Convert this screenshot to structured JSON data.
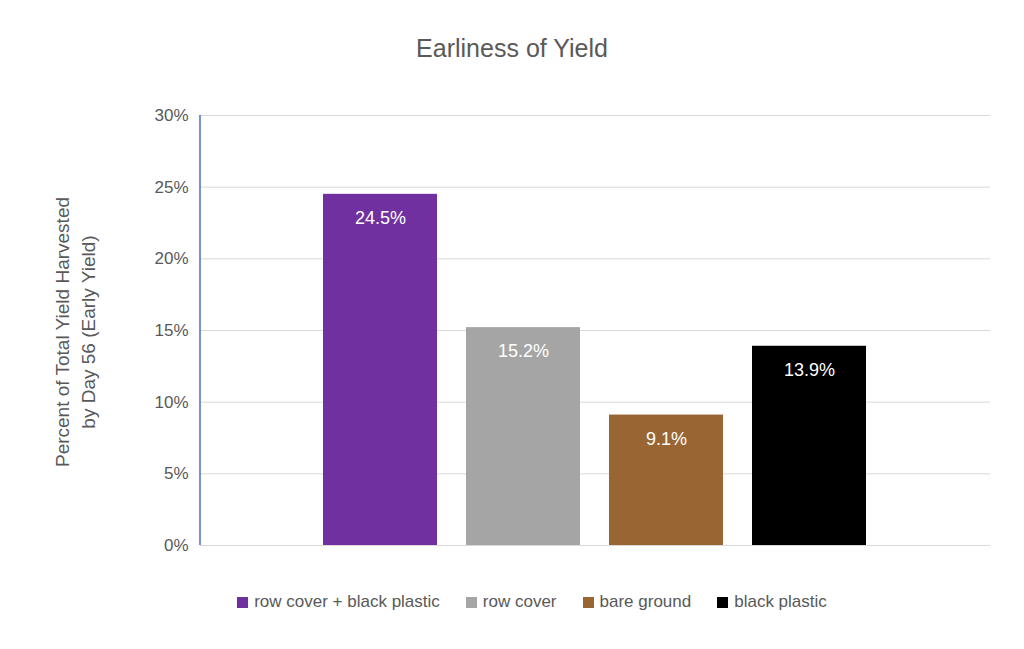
{
  "chart_data": {
    "type": "bar",
    "title": "Earliness of Yield",
    "y_label": "Percent of Total Yield Harvested by Day 56 (Early Yield)",
    "categories": [
      "row cover + black plastic",
      "row cover",
      "bare ground",
      "black plastic"
    ],
    "values": [
      24.5,
      15.2,
      9.1,
      13.9
    ],
    "value_labels": [
      "24.5%",
      "15.2%",
      "9.1%",
      "13.9%"
    ],
    "colors": [
      "#7030a0",
      "#a5a5a5",
      "#996633",
      "#000000"
    ],
    "ylim": [
      0,
      30
    ],
    "yticks": [
      {
        "value": 0,
        "label": "0%"
      },
      {
        "value": 5,
        "label": "5%"
      },
      {
        "value": 10,
        "label": "10%"
      },
      {
        "value": 15,
        "label": "15%"
      },
      {
        "value": 20,
        "label": "20%"
      },
      {
        "value": 25,
        "label": "25%"
      },
      {
        "value": 30,
        "label": "30%"
      }
    ],
    "grid": true,
    "legend": "bottom",
    "data_labels": true,
    "tick_labels": "y"
  }
}
